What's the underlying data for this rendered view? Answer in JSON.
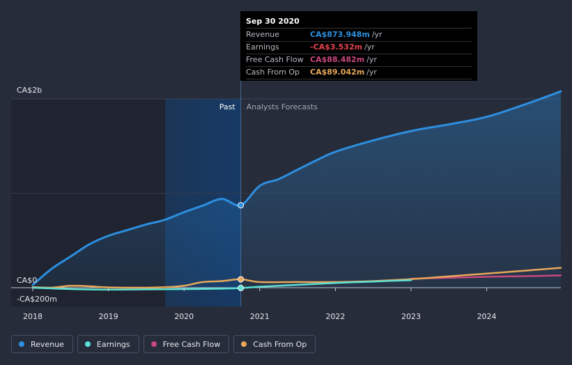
{
  "chart_data": {
    "type": "line",
    "y_axis": {
      "top_label": "CA$2b",
      "zero_label": "CA$0",
      "bottom_label": "-CA$200m",
      "ylim": [
        -200,
        2000
      ]
    },
    "x_ticks": [
      "2018",
      "2019",
      "2020",
      "2021",
      "2022",
      "2023",
      "2024"
    ],
    "x_range": [
      2018.0,
      2024.98
    ],
    "past_label": "Past",
    "forecast_label": "Analysts Forecasts",
    "divider_x": 2020.75,
    "shaded_past_start": 2019.75,
    "series": [
      {
        "name": "Revenue",
        "color": "#2d8fe0",
        "points": [
          [
            2018.0,
            30
          ],
          [
            2018.25,
            200
          ],
          [
            2018.5,
            330
          ],
          [
            2018.75,
            460
          ],
          [
            2019.0,
            550
          ],
          [
            2019.25,
            610
          ],
          [
            2019.5,
            670
          ],
          [
            2019.75,
            720
          ],
          [
            2020.0,
            800
          ],
          [
            2020.25,
            870
          ],
          [
            2020.5,
            940
          ],
          [
            2020.75,
            874
          ],
          [
            2021.0,
            1080
          ],
          [
            2021.25,
            1150
          ],
          [
            2021.5,
            1250
          ],
          [
            2021.75,
            1350
          ],
          [
            2022.0,
            1440
          ],
          [
            2022.5,
            1560
          ],
          [
            2023.0,
            1660
          ],
          [
            2023.5,
            1730
          ],
          [
            2024.0,
            1810
          ],
          [
            2024.5,
            1940
          ],
          [
            2024.98,
            2080
          ]
        ]
      },
      {
        "name": "Earnings",
        "color": "#5ce1d4",
        "points": [
          [
            2018.0,
            0
          ],
          [
            2018.5,
            -15
          ],
          [
            2019.0,
            -20
          ],
          [
            2019.5,
            -18
          ],
          [
            2020.0,
            -15
          ],
          [
            2020.5,
            -10
          ],
          [
            2020.75,
            -3.5
          ],
          [
            2021.0,
            10
          ],
          [
            2021.5,
            30
          ],
          [
            2022.0,
            50
          ],
          [
            2022.5,
            65
          ],
          [
            2023.0,
            80
          ]
        ]
      },
      {
        "name": "Free Cash Flow",
        "color": "#c8487f",
        "points": [
          [
            2023.0,
            95
          ],
          [
            2023.5,
            105
          ],
          [
            2024.0,
            115
          ],
          [
            2024.5,
            122
          ],
          [
            2024.98,
            130
          ]
        ]
      },
      {
        "name": "Cash From Op",
        "color": "#e8a85a",
        "points": [
          [
            2018.0,
            5
          ],
          [
            2018.25,
            0
          ],
          [
            2018.5,
            20
          ],
          [
            2018.75,
            15
          ],
          [
            2019.0,
            3
          ],
          [
            2019.5,
            0
          ],
          [
            2019.75,
            5
          ],
          [
            2020.0,
            20
          ],
          [
            2020.25,
            60
          ],
          [
            2020.5,
            70
          ],
          [
            2020.75,
            89
          ],
          [
            2021.0,
            60
          ],
          [
            2021.5,
            60
          ],
          [
            2022.0,
            60
          ],
          [
            2022.5,
            70
          ],
          [
            2023.0,
            90
          ],
          [
            2023.5,
            120
          ],
          [
            2024.0,
            150
          ],
          [
            2024.5,
            180
          ],
          [
            2024.98,
            210
          ]
        ]
      }
    ],
    "highlight_x": 2020.75
  },
  "tooltip": {
    "date": "Sep 30 2020",
    "unit": "/yr",
    "rows": [
      {
        "label": "Revenue",
        "value": "CA$873.948m",
        "color": "#2d8fe0"
      },
      {
        "label": "Earnings",
        "value": "-CA$3.532m",
        "color": "#e8424c"
      },
      {
        "label": "Free Cash Flow",
        "value": "CA$88.482m",
        "color": "#c8487f"
      },
      {
        "label": "Cash From Op",
        "value": "CA$89.042m",
        "color": "#e8a85a"
      }
    ]
  },
  "legend": [
    {
      "label": "Revenue",
      "color": "#2d8fe0"
    },
    {
      "label": "Earnings",
      "color": "#5ce1d4"
    },
    {
      "label": "Free Cash Flow",
      "color": "#c8487f"
    },
    {
      "label": "Cash From Op",
      "color": "#e8a85a"
    }
  ]
}
